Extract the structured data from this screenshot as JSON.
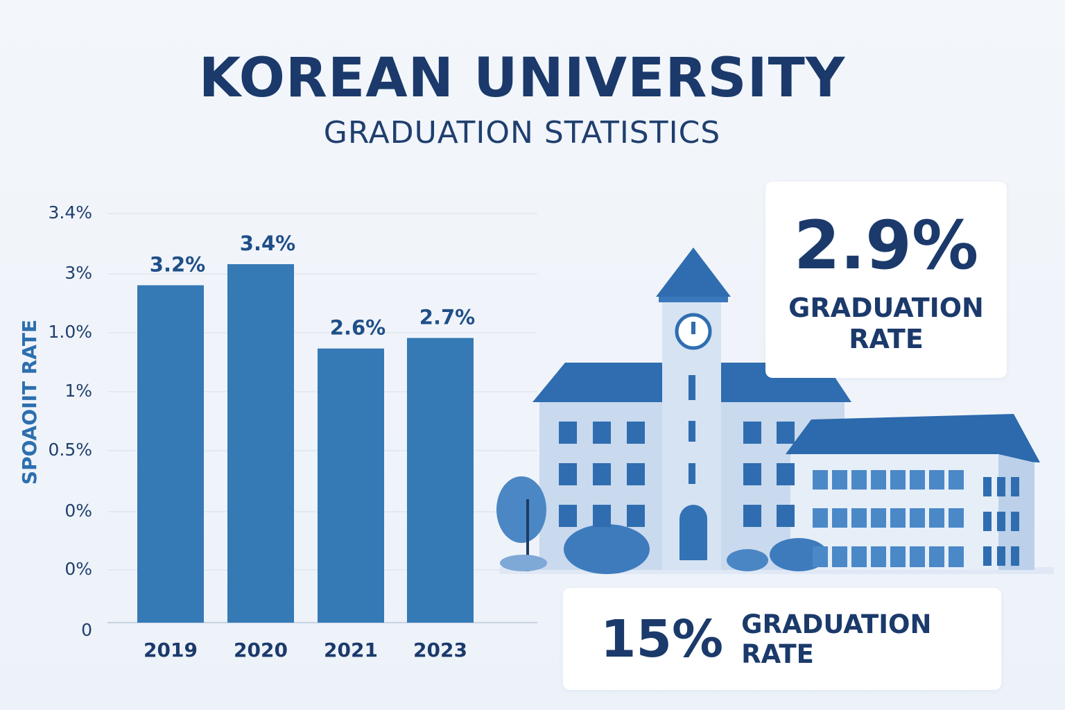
{
  "chart_data": {
    "type": "bar",
    "title": "KOREAN UNIVERSITY",
    "subtitle": "GRADUATION STATISTICS",
    "y_label": "SPOAOIIT RATE",
    "categories": [
      "2019",
      "2020",
      "2021",
      "2023"
    ],
    "values": [
      3.2,
      3.4,
      2.6,
      2.7
    ],
    "value_labels": [
      "3.2%",
      "3.4%",
      "2.6%",
      "2.7%"
    ],
    "color": "#3579b5",
    "ylim": [
      0,
      3.4
    ],
    "ytick_labels": [
      "3.4%",
      "3%",
      "1.0%",
      "1%",
      "0.5%",
      "0%",
      "0%",
      "0"
    ],
    "grid": true
  },
  "cards": [
    {
      "value_label": "2.9%",
      "label": "GRADUATION RATE"
    },
    {
      "value_label": "15%",
      "label": "GRADUATION RATE"
    }
  ]
}
